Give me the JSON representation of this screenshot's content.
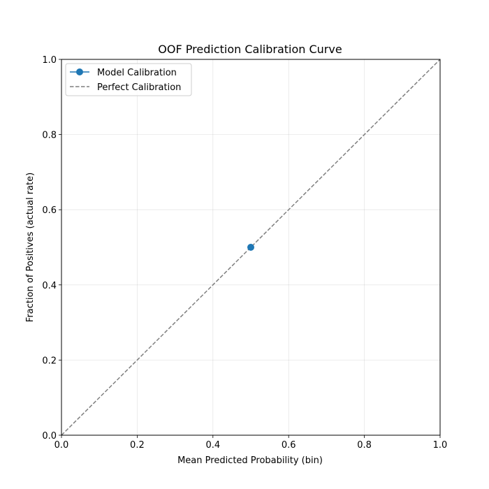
{
  "chart_data": {
    "type": "line",
    "title": "OOF Prediction Calibration Curve",
    "xlabel": "Mean Predicted Probability (bin)",
    "ylabel": "Fraction of Positives (actual rate)",
    "xlim": [
      0,
      1
    ],
    "ylim": [
      0,
      1
    ],
    "xticks": [
      0,
      0.2,
      0.4,
      0.6,
      0.8,
      1
    ],
    "yticks": [
      0,
      0.2,
      0.4,
      0.6,
      0.8,
      1
    ],
    "xtick_labels": [
      "0.0",
      "0.2",
      "0.4",
      "0.6",
      "0.8",
      "1.0"
    ],
    "ytick_labels": [
      "0.0",
      "0.2",
      "0.4",
      "0.6",
      "0.8",
      "1.0"
    ],
    "grid": true,
    "legend_position": "upper-left",
    "series": [
      {
        "name": "Model Calibration",
        "style": "solid-line-with-circle-markers",
        "color": "#1f77b4",
        "x": [
          0.5
        ],
        "y": [
          0.5
        ]
      },
      {
        "name": "Perfect Calibration",
        "style": "dashed-line",
        "color": "#7f7f7f",
        "x": [
          0,
          1
        ],
        "y": [
          0,
          1
        ]
      }
    ]
  }
}
